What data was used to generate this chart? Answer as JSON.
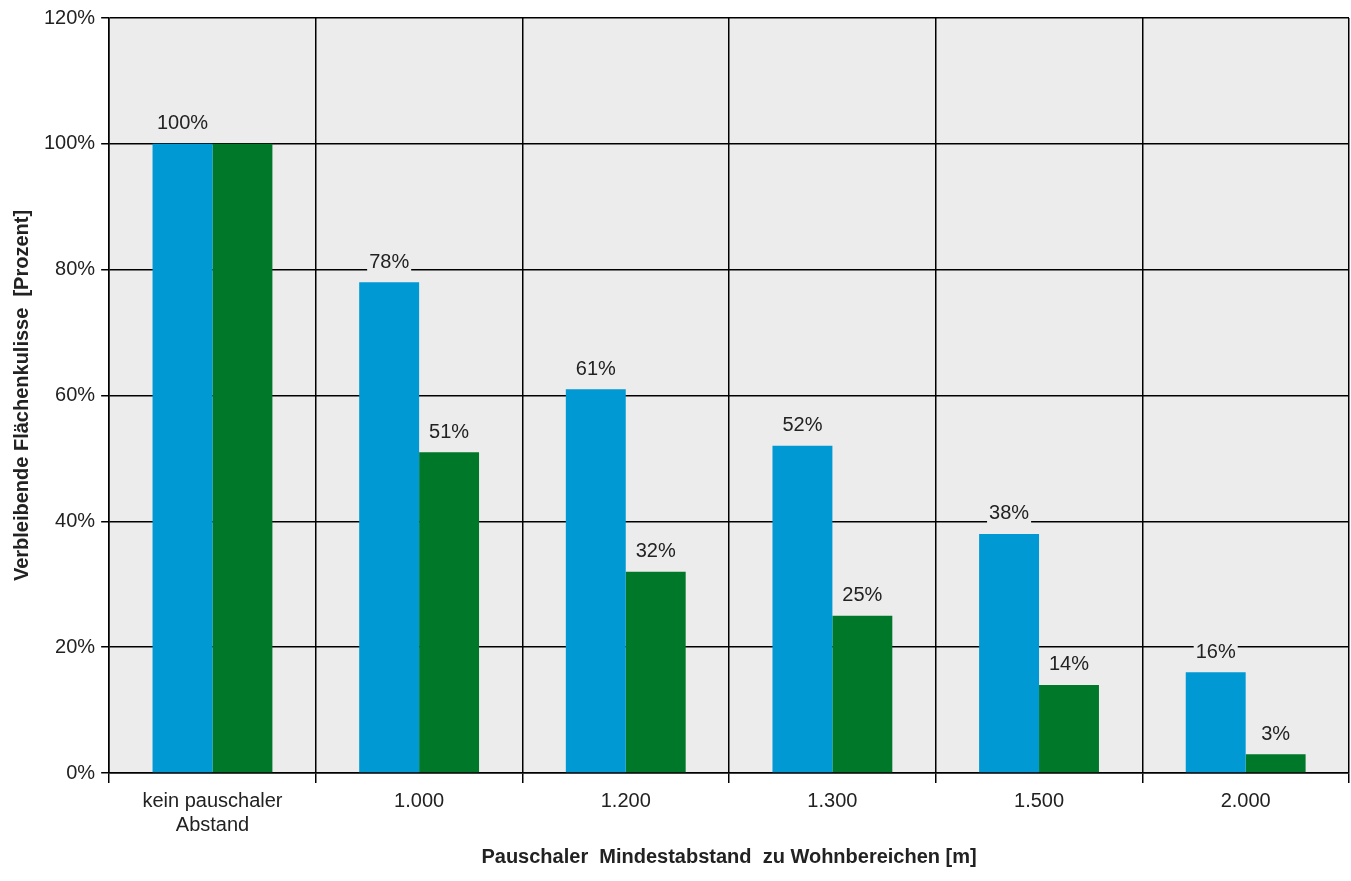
{
  "chart_data": {
    "type": "bar",
    "xlabel": "Pauschaler  Mindestabstand  zu Wohnbereichen [m]",
    "ylabel": "Verbleibende Flächenkulisse  [Prozent]",
    "categories": [
      "kein pauschaler Abstand",
      "1.000",
      "1.200",
      "1.300",
      "1.500",
      "2.000"
    ],
    "series": [
      {
        "color": "#0099d4",
        "values": [
          100,
          78,
          61,
          52,
          38,
          16
        ],
        "value_labels": [
          "100%",
          "78%",
          "61%",
          "52%",
          "38%",
          "16%"
        ]
      },
      {
        "color": "#00782a",
        "values": [
          100,
          51,
          32,
          25,
          14,
          3
        ],
        "value_labels": [
          null,
          "51%",
          "32%",
          "25%",
          "14%",
          "3%"
        ]
      }
    ],
    "ylim": [
      0,
      120
    ],
    "yticks": [
      {
        "value": 0,
        "label": "0%"
      },
      {
        "value": 20,
        "label": "20%"
      },
      {
        "value": 40,
        "label": "40%"
      },
      {
        "value": 60,
        "label": "60%"
      },
      {
        "value": 80,
        "label": "80%"
      },
      {
        "value": 100,
        "label": "100%"
      },
      {
        "value": 120,
        "label": "120%"
      }
    ],
    "grid": true,
    "legend": false
  }
}
